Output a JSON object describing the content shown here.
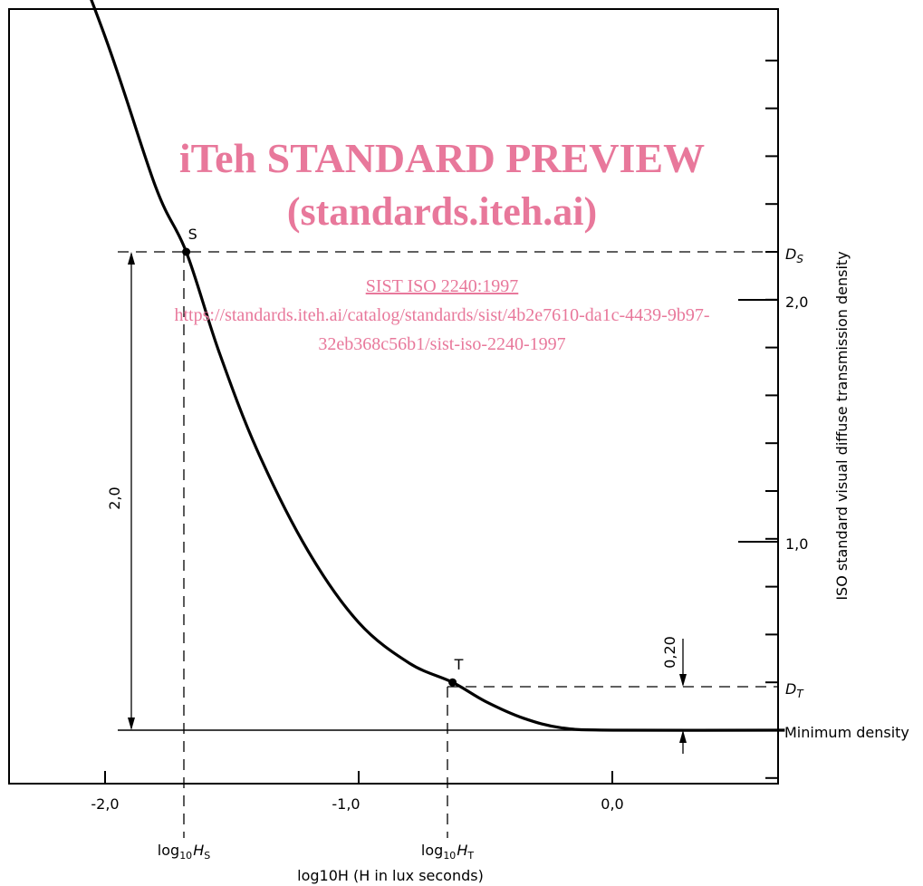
{
  "chart_data": {
    "type": "line",
    "xlabel": "log10H (H in lux seconds)",
    "ylabel": "ISO standard visual diffuse transmission density",
    "x_ticks": [
      "-2,0",
      "-1,0",
      "0,0"
    ],
    "y_ticks": [
      "1,0",
      "2,0"
    ],
    "xlim": [
      -2.4,
      0.68
    ],
    "ylim": [
      -0.6,
      3.7
    ],
    "grid": false,
    "series": [
      {
        "values": [
          {
            "x": -2.29,
            "y": 3.7
          },
          {
            "x": -2.0,
            "y": 2.9
          },
          {
            "x": -1.8,
            "y": 2.27
          },
          {
            "x": -1.68,
            "y": 2.0
          },
          {
            "x": -1.55,
            "y": 1.58
          },
          {
            "x": -1.4,
            "y": 1.17
          },
          {
            "x": -1.2,
            "y": 0.75
          },
          {
            "x": -1.0,
            "y": 0.45
          },
          {
            "x": -0.8,
            "y": 0.28
          },
          {
            "x": -0.63,
            "y": 0.2
          },
          {
            "x": -0.5,
            "y": 0.12
          },
          {
            "x": -0.35,
            "y": 0.05
          },
          {
            "x": -0.2,
            "y": 0.01
          },
          {
            "x": 0.0,
            "y": 0.0
          },
          {
            "x": 0.68,
            "y": 0.0
          }
        ]
      }
    ],
    "points": [
      {
        "label": "S",
        "x": -1.68,
        "y": 2.0
      },
      {
        "label": "T",
        "x": -0.63,
        "y": 0.2
      }
    ],
    "annotations": {
      "ds": "D",
      "ds_sub": "S",
      "dt": "D",
      "dt_sub": "T",
      "min_density": "Minimum density",
      "span_2": "2,0",
      "offset_020": "0,20",
      "log_hs_prefix": "log",
      "log_hs_base": "10",
      "log_hs_var": "H",
      "log_hs_sub": "S",
      "log_ht_prefix": "log",
      "log_ht_base": "10",
      "log_ht_var": "H",
      "log_ht_sub": "T"
    }
  },
  "watermark": {
    "title": "iTeh STANDARD PREVIEW",
    "subtitle": "(standards.iteh.ai)",
    "doc_id": "SIST ISO 2240:1997",
    "url_line1": "https://standards.iteh.ai/catalog/standards/sist/4b2e7610-da1c-4439-9b97-",
    "url_line2": "32eb368c56b1/sist-iso-2240-1997"
  },
  "colors": {
    "ink": "#000000",
    "watermark": "#e8789b"
  }
}
